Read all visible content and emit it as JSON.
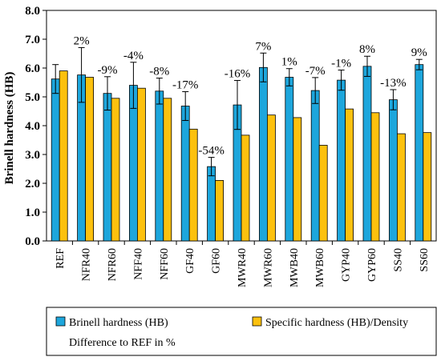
{
  "chart_data": {
    "type": "bar",
    "ylabel": "Brinell hardness (HB)",
    "ylim": [
      0,
      8
    ],
    "yticks": [
      0,
      1,
      2,
      3,
      4,
      5,
      6,
      7,
      8
    ],
    "ytick_labels": [
      "0.0",
      "1.0",
      "2.0",
      "3.0",
      "4.0",
      "5.0",
      "6.0",
      "7.0",
      "8.0"
    ],
    "categories": [
      "REF",
      "NFR40",
      "NFR60",
      "NFF40",
      "NFF60",
      "GF40",
      "GF60",
      "MWR40",
      "MWR60",
      "MWB40",
      "MWB60",
      "GYP40",
      "GYP60",
      "SS40",
      "SS60"
    ],
    "series": [
      {
        "name": "Brinell hardness (HB)",
        "color": "#1da6dc",
        "values": [
          5.62,
          5.76,
          5.12,
          5.4,
          5.2,
          4.68,
          2.58,
          4.72,
          6.02,
          5.68,
          5.22,
          5.58,
          6.06,
          4.9,
          6.12
        ],
        "error": [
          0.5,
          0.95,
          0.58,
          0.8,
          0.45,
          0.5,
          0.32,
          0.85,
          0.5,
          0.3,
          0.45,
          0.35,
          0.35,
          0.35,
          0.18
        ]
      },
      {
        "name": "Specific hardness (HB)/Density",
        "color": "#fcc10e",
        "values": [
          5.9,
          5.68,
          4.95,
          5.3,
          4.95,
          3.88,
          2.1,
          3.67,
          4.37,
          4.28,
          3.32,
          4.58,
          4.45,
          3.72,
          3.76
        ]
      }
    ],
    "annotations": [
      "",
      "2%",
      "-9%",
      "-4%",
      "-8%",
      "-17%",
      "-54%",
      "-16%",
      "7%",
      "1%",
      "-7%",
      "-1%",
      "8%",
      "-13%",
      "9%"
    ],
    "annotation_legend": "Difference to REF in %",
    "grid": false,
    "legend_position": "bottom"
  }
}
